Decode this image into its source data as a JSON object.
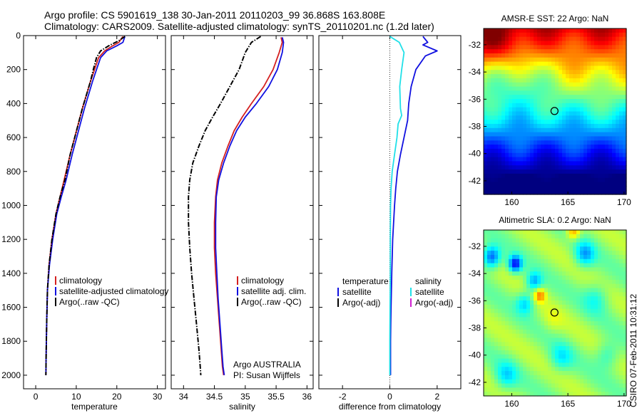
{
  "header": {
    "line1": "Argo profile: CS 5901619_138 30-Jan-2011 20110203_99 36.868S 163.808E",
    "line2": "Climatology: CARS2009. Satellite-adjusted climatology: synTS_20110201.nc (1.2d later)"
  },
  "side_text": "CSIRO 07-Feb-2011 10:31:12",
  "colors": {
    "climatology": "#d42020",
    "satellite": "#1010e0",
    "argo": "#000000",
    "satellite_salinity_diff": "#20e0e8",
    "argo_adj_salinity": "#d020d0"
  },
  "chart_data": [
    {
      "type": "line",
      "xlabel": "temperature",
      "ylabel": "",
      "xlim": [
        -3,
        32
      ],
      "ylim": [
        0,
        2080
      ],
      "y_reversed": true,
      "xticks": [
        0,
        10,
        20,
        30
      ],
      "yticks": [
        0,
        200,
        400,
        600,
        800,
        1000,
        1200,
        1400,
        1600,
        1800,
        2000
      ],
      "legend_position": "lower-right",
      "series": [
        {
          "name": "climatology",
          "color_key": "climatology",
          "style": "solid",
          "x": [
            21.5,
            20.5,
            19.0,
            17.0,
            15.5,
            14.5,
            13.5,
            12.5,
            11.5,
            10.5,
            9.5,
            8.5,
            7.0,
            6.0,
            5.0,
            4.0,
            3.3,
            2.9,
            2.7,
            2.6,
            2.5
          ],
          "y": [
            5,
            40,
            60,
            90,
            130,
            200,
            270,
            350,
            430,
            520,
            610,
            700,
            850,
            950,
            1050,
            1200,
            1350,
            1500,
            1700,
            1850,
            2000
          ]
        },
        {
          "name": "satellite-adjusted climatology",
          "color_key": "satellite",
          "style": "solid",
          "x": [
            22.0,
            21.5,
            20.0,
            17.5,
            16.0,
            15.0,
            14.0,
            13.0,
            12.0,
            11.0,
            10.0,
            9.0,
            7.5,
            6.3,
            5.2,
            4.2,
            3.4,
            2.9,
            2.7,
            2.6,
            2.5
          ],
          "y": [
            5,
            40,
            60,
            90,
            130,
            200,
            270,
            350,
            430,
            520,
            610,
            700,
            850,
            950,
            1050,
            1200,
            1350,
            1500,
            1700,
            1850,
            2000
          ]
        },
        {
          "name": "Argo(..raw -QC)",
          "color_key": "argo",
          "style": "dashdot",
          "x": [
            22.0,
            20.5,
            18.0,
            16.0,
            15.0,
            14.2,
            13.5,
            12.5,
            11.5,
            10.5,
            9.5,
            8.5,
            7.2,
            6.0,
            5.0,
            4.0,
            3.3,
            2.9,
            2.7,
            2.6,
            2.5
          ],
          "y": [
            5,
            30,
            60,
            90,
            130,
            200,
            270,
            350,
            430,
            520,
            610,
            700,
            850,
            950,
            1050,
            1200,
            1350,
            1500,
            1700,
            1850,
            2000
          ]
        }
      ]
    },
    {
      "type": "line",
      "xlabel": "salinity",
      "ylabel": "",
      "xlim": [
        33.8,
        36.1
      ],
      "ylim": [
        0,
        2080
      ],
      "y_reversed": true,
      "xticks": [
        34,
        34.5,
        35,
        35.5,
        36
      ],
      "xtick_labels": [
        "34",
        "34.5",
        "35",
        "35.5",
        "36"
      ],
      "legend_position": "lower-right",
      "annotation": [
        "Argo AUSTRALIA",
        "PI: Susan Wijffels"
      ],
      "series": [
        {
          "name": "climatology",
          "color_key": "climatology",
          "style": "solid",
          "x": [
            35.58,
            35.6,
            35.55,
            35.45,
            35.3,
            35.1,
            34.95,
            34.82,
            34.72,
            34.62,
            34.55,
            34.52,
            34.5,
            34.5,
            34.52,
            34.55,
            34.58,
            34.61,
            34.63,
            34.65
          ],
          "y": [
            10,
            40,
            100,
            200,
            300,
            400,
            480,
            560,
            650,
            750,
            850,
            950,
            1100,
            1250,
            1400,
            1550,
            1700,
            1850,
            1950,
            2000
          ]
        },
        {
          "name": "satellite adj. clim.",
          "color_key": "satellite",
          "style": "solid",
          "x": [
            35.6,
            35.62,
            35.6,
            35.52,
            35.38,
            35.18,
            35.0,
            34.86,
            34.75,
            34.65,
            34.57,
            34.53,
            34.52,
            34.52,
            34.54,
            34.56,
            34.59,
            34.62,
            34.64,
            34.66
          ],
          "y": [
            10,
            40,
            100,
            200,
            300,
            400,
            480,
            560,
            650,
            750,
            850,
            950,
            1100,
            1250,
            1400,
            1550,
            1700,
            1850,
            1950,
            2000
          ]
        },
        {
          "name": "Argo(..raw -QC)",
          "color_key": "argo",
          "style": "dashdot",
          "x": [
            35.25,
            35.1,
            35.0,
            34.9,
            34.75,
            34.6,
            34.47,
            34.35,
            34.25,
            34.15,
            34.1,
            34.08,
            34.08,
            34.1,
            34.13,
            34.17,
            34.21,
            34.25,
            34.27,
            34.28
          ],
          "y": [
            5,
            40,
            100,
            200,
            300,
            400,
            480,
            560,
            650,
            750,
            850,
            950,
            1100,
            1250,
            1400,
            1550,
            1700,
            1850,
            1950,
            2000
          ]
        }
      ]
    },
    {
      "type": "line",
      "xlabel": "difference from climatology",
      "ylabel": "",
      "xlim": [
        -3.0,
        3.0
      ],
      "ylim": [
        0,
        2080
      ],
      "y_reversed": true,
      "xticks": [
        -2,
        0,
        2
      ],
      "legend_groups": [
        {
          "title": "temperature",
          "entries": [
            {
              "label": "satellite",
              "color_key": "satellite"
            },
            {
              "label": "Argo(-adj)",
              "color_key": "argo"
            }
          ]
        },
        {
          "title": "salinity",
          "entries": [
            {
              "label": "satellite",
              "color_key": "satellite_salinity_diff"
            },
            {
              "label": "Argo(-adj)",
              "color_key": "argo_adj_salinity"
            }
          ]
        }
      ],
      "series": [
        {
          "name": "satellite temperature",
          "color_key": "satellite",
          "style": "solid",
          "x": [
            1.4,
            1.6,
            1.4,
            2.0,
            1.5,
            1.1,
            0.9,
            0.8,
            0.75,
            0.6,
            0.45,
            0.32,
            0.25,
            0.2,
            0.12,
            0.08,
            0.05,
            0.04,
            0.03,
            0.03,
            0.03
          ],
          "y": [
            5,
            40,
            55,
            90,
            120,
            200,
            300,
            400,
            500,
            600,
            700,
            800,
            900,
            1000,
            1200,
            1400,
            1600,
            1700,
            1800,
            1900,
            2000
          ]
        },
        {
          "name": "satellite salinity",
          "color_key": "satellite_salinity_diff",
          "style": "solid",
          "x": [
            0.0,
            0.4,
            0.6,
            0.5,
            0.42,
            0.45,
            0.5,
            0.35,
            0.3,
            0.2,
            0.1,
            0.05,
            0.03,
            0.02,
            0.02,
            0.01,
            0.0,
            0.0
          ],
          "y": [
            5,
            40,
            100,
            200,
            300,
            430,
            470,
            520,
            600,
            700,
            800,
            900,
            1000,
            1200,
            1400,
            1600,
            1800,
            2000
          ]
        }
      ]
    },
    {
      "type": "heatmap",
      "title": "AMSR-E SST: 22 Argo: NaN",
      "xlim": [
        157.5,
        170.2
      ],
      "ylim": [
        -43,
        -30.8
      ],
      "xticks": [
        160,
        165,
        170
      ],
      "yticks": [
        -32,
        -34,
        -36,
        -38,
        -40,
        -42
      ],
      "marker": {
        "lon": 163.808,
        "lat": -36.868
      }
    },
    {
      "type": "heatmap",
      "title": "Altimetric SLA: 0.2 Argo: NaN",
      "xlim": [
        157.5,
        170.2
      ],
      "ylim": [
        -43,
        -30.8
      ],
      "xticks": [
        160,
        165,
        170
      ],
      "yticks": [
        -32,
        -34,
        -36,
        -38,
        -40,
        -42
      ],
      "marker": {
        "lon": 163.808,
        "lat": -36.868
      }
    }
  ]
}
